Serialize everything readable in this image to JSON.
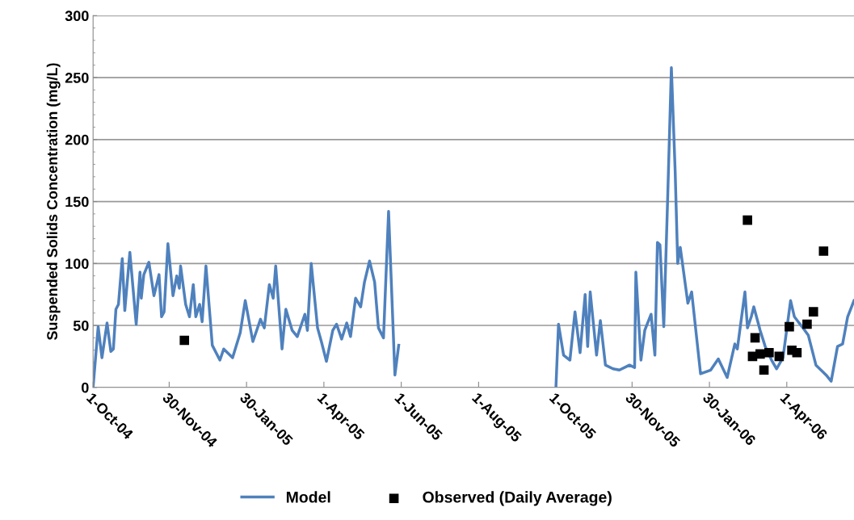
{
  "chart_data": {
    "type": "line",
    "ylabel": "Suspended Solids Concentration (mg/L)",
    "xlim": [
      "2004-10-01",
      "2006-05-24"
    ],
    "ylim": [
      0,
      300
    ],
    "yticks": [
      0,
      50,
      100,
      150,
      200,
      250,
      300
    ],
    "xticks": [
      {
        "value": "2004-10-01",
        "label": "1-Oct-04"
      },
      {
        "value": "2004-11-30",
        "label": "30-Nov-04"
      },
      {
        "value": "2005-01-30",
        "label": "30-Jan-05"
      },
      {
        "value": "2005-04-01",
        "label": "1-Apr-05"
      },
      {
        "value": "2005-06-01",
        "label": "1-Jun-05"
      },
      {
        "value": "2005-08-01",
        "label": "1-Aug-05"
      },
      {
        "value": "2005-10-01",
        "label": "1-Oct-05"
      },
      {
        "value": "2005-11-30",
        "label": "30-Nov-05"
      },
      {
        "value": "2006-01-30",
        "label": "30-Jan-06"
      },
      {
        "value": "2006-04-01",
        "label": "1-Apr-06"
      }
    ],
    "grid": "y",
    "legend": "bottom",
    "series": [
      {
        "name": "Model",
        "color": "#4f81bd",
        "marker": "none",
        "line_style": "solid",
        "x": [
          "2004-10-01",
          "2004-10-05",
          "2004-10-08",
          "2004-10-12",
          "2004-10-15",
          "2004-10-17",
          "2004-10-19",
          "2004-10-21",
          "2004-10-24",
          "2004-10-26",
          "2004-10-30",
          "2004-11-04",
          "2004-11-07",
          "2004-11-08",
          "2004-11-10",
          "2004-11-14",
          "2004-11-18",
          "2004-11-22",
          "2004-11-24",
          "2004-11-26",
          "2004-11-29",
          "2004-12-03",
          "2004-12-06",
          "2004-12-08",
          "2004-12-09",
          "2004-12-13",
          "2004-12-16",
          "2004-12-19",
          "2004-12-21",
          "2004-12-24",
          "2004-12-26",
          "2004-12-29",
          "2005-01-03",
          "2005-01-09",
          "2005-01-12",
          "2005-01-19",
          "2005-01-25",
          "2005-01-29",
          "2005-02-04",
          "2005-02-10",
          "2005-02-13",
          "2005-02-17",
          "2005-02-20",
          "2005-02-22",
          "2005-02-27",
          "2005-03-02",
          "2005-03-07",
          "2005-03-11",
          "2005-03-17",
          "2005-03-19",
          "2005-03-22",
          "2005-03-27",
          "2005-03-30",
          "2005-04-03",
          "2005-04-08",
          "2005-04-11",
          "2005-04-15",
          "2005-04-19",
          "2005-04-22",
          "2005-04-26",
          "2005-04-30",
          "2005-05-03",
          "2005-05-07",
          "2005-05-11",
          "2005-05-14",
          "2005-05-18",
          "2005-05-22",
          "2005-05-27",
          "2005-05-30",
          "2005-07-15",
          "2005-10-01",
          "2005-10-03",
          "2005-10-07",
          "2005-10-12",
          "2005-10-16",
          "2005-10-20",
          "2005-10-24",
          "2005-10-26",
          "2005-10-28",
          "2005-11-02",
          "2005-11-05",
          "2005-11-09",
          "2005-11-15",
          "2005-11-20",
          "2005-11-28",
          "2005-12-02",
          "2005-12-03",
          "2005-12-07",
          "2005-12-10",
          "2005-12-15",
          "2005-12-18",
          "2005-12-20",
          "2005-12-22",
          "2005-12-25",
          "2005-12-28",
          "2005-12-31",
          "2006-01-03",
          "2006-01-05",
          "2006-01-07",
          "2006-01-13",
          "2006-01-16",
          "2006-01-23",
          "2006-01-31",
          "2006-02-06",
          "2006-02-13",
          "2006-02-19",
          "2006-02-21",
          "2006-02-27",
          "2006-03-01",
          "2006-03-04",
          "2006-03-06",
          "2006-03-11",
          "2006-03-15",
          "2006-03-20",
          "2006-03-24",
          "2006-03-29",
          "2006-04-04",
          "2006-04-07",
          "2006-04-10",
          "2006-04-13",
          "2006-04-18",
          "2006-04-24",
          "2006-05-02",
          "2006-05-06",
          "2006-05-11",
          "2006-05-15",
          "2006-05-19",
          "2006-05-24"
        ],
        "values": [
          0,
          49,
          24,
          52,
          29,
          31,
          63,
          67,
          104,
          62,
          109,
          51,
          93,
          72,
          91,
          101,
          74,
          91,
          57,
          61,
          116,
          74,
          90,
          80,
          98,
          67,
          57,
          83,
          57,
          67,
          53,
          98,
          34,
          22,
          31,
          24,
          44,
          70,
          37,
          55,
          48,
          83,
          72,
          98,
          31,
          63,
          46,
          41,
          59,
          46,
          100,
          48,
          37,
          21,
          46,
          51,
          39,
          52,
          41,
          72,
          65,
          85,
          102,
          85,
          48,
          40,
          142,
          10,
          34,
          null,
          1,
          51,
          26,
          22,
          61,
          28,
          75,
          33,
          77,
          26,
          54,
          18,
          15,
          14,
          18,
          16,
          93,
          22,
          46,
          59,
          26,
          117,
          115,
          49,
          150,
          258,
          174,
          100,
          113,
          68,
          77,
          11,
          14,
          23,
          8,
          35,
          31,
          77,
          48,
          57,
          65,
          46,
          33,
          22,
          15,
          24,
          70,
          57,
          53,
          49,
          42,
          18,
          10,
          5,
          33,
          35,
          57,
          70
        ]
      },
      {
        "name": "Observed (Daily Average)",
        "type": "scatter",
        "color": "#000000",
        "marker": "square",
        "x": [
          "2004-12-12",
          "2006-03-01",
          "2006-03-05",
          "2006-03-07",
          "2006-03-11",
          "2006-03-14",
          "2006-03-18",
          "2006-03-26",
          "2006-04-03",
          "2006-04-05",
          "2006-04-09",
          "2006-04-17",
          "2006-04-22",
          "2006-04-30"
        ],
        "values": [
          38,
          135,
          25,
          40,
          27,
          14,
          28,
          25,
          49,
          30,
          28,
          51,
          61,
          110
        ]
      }
    ]
  }
}
